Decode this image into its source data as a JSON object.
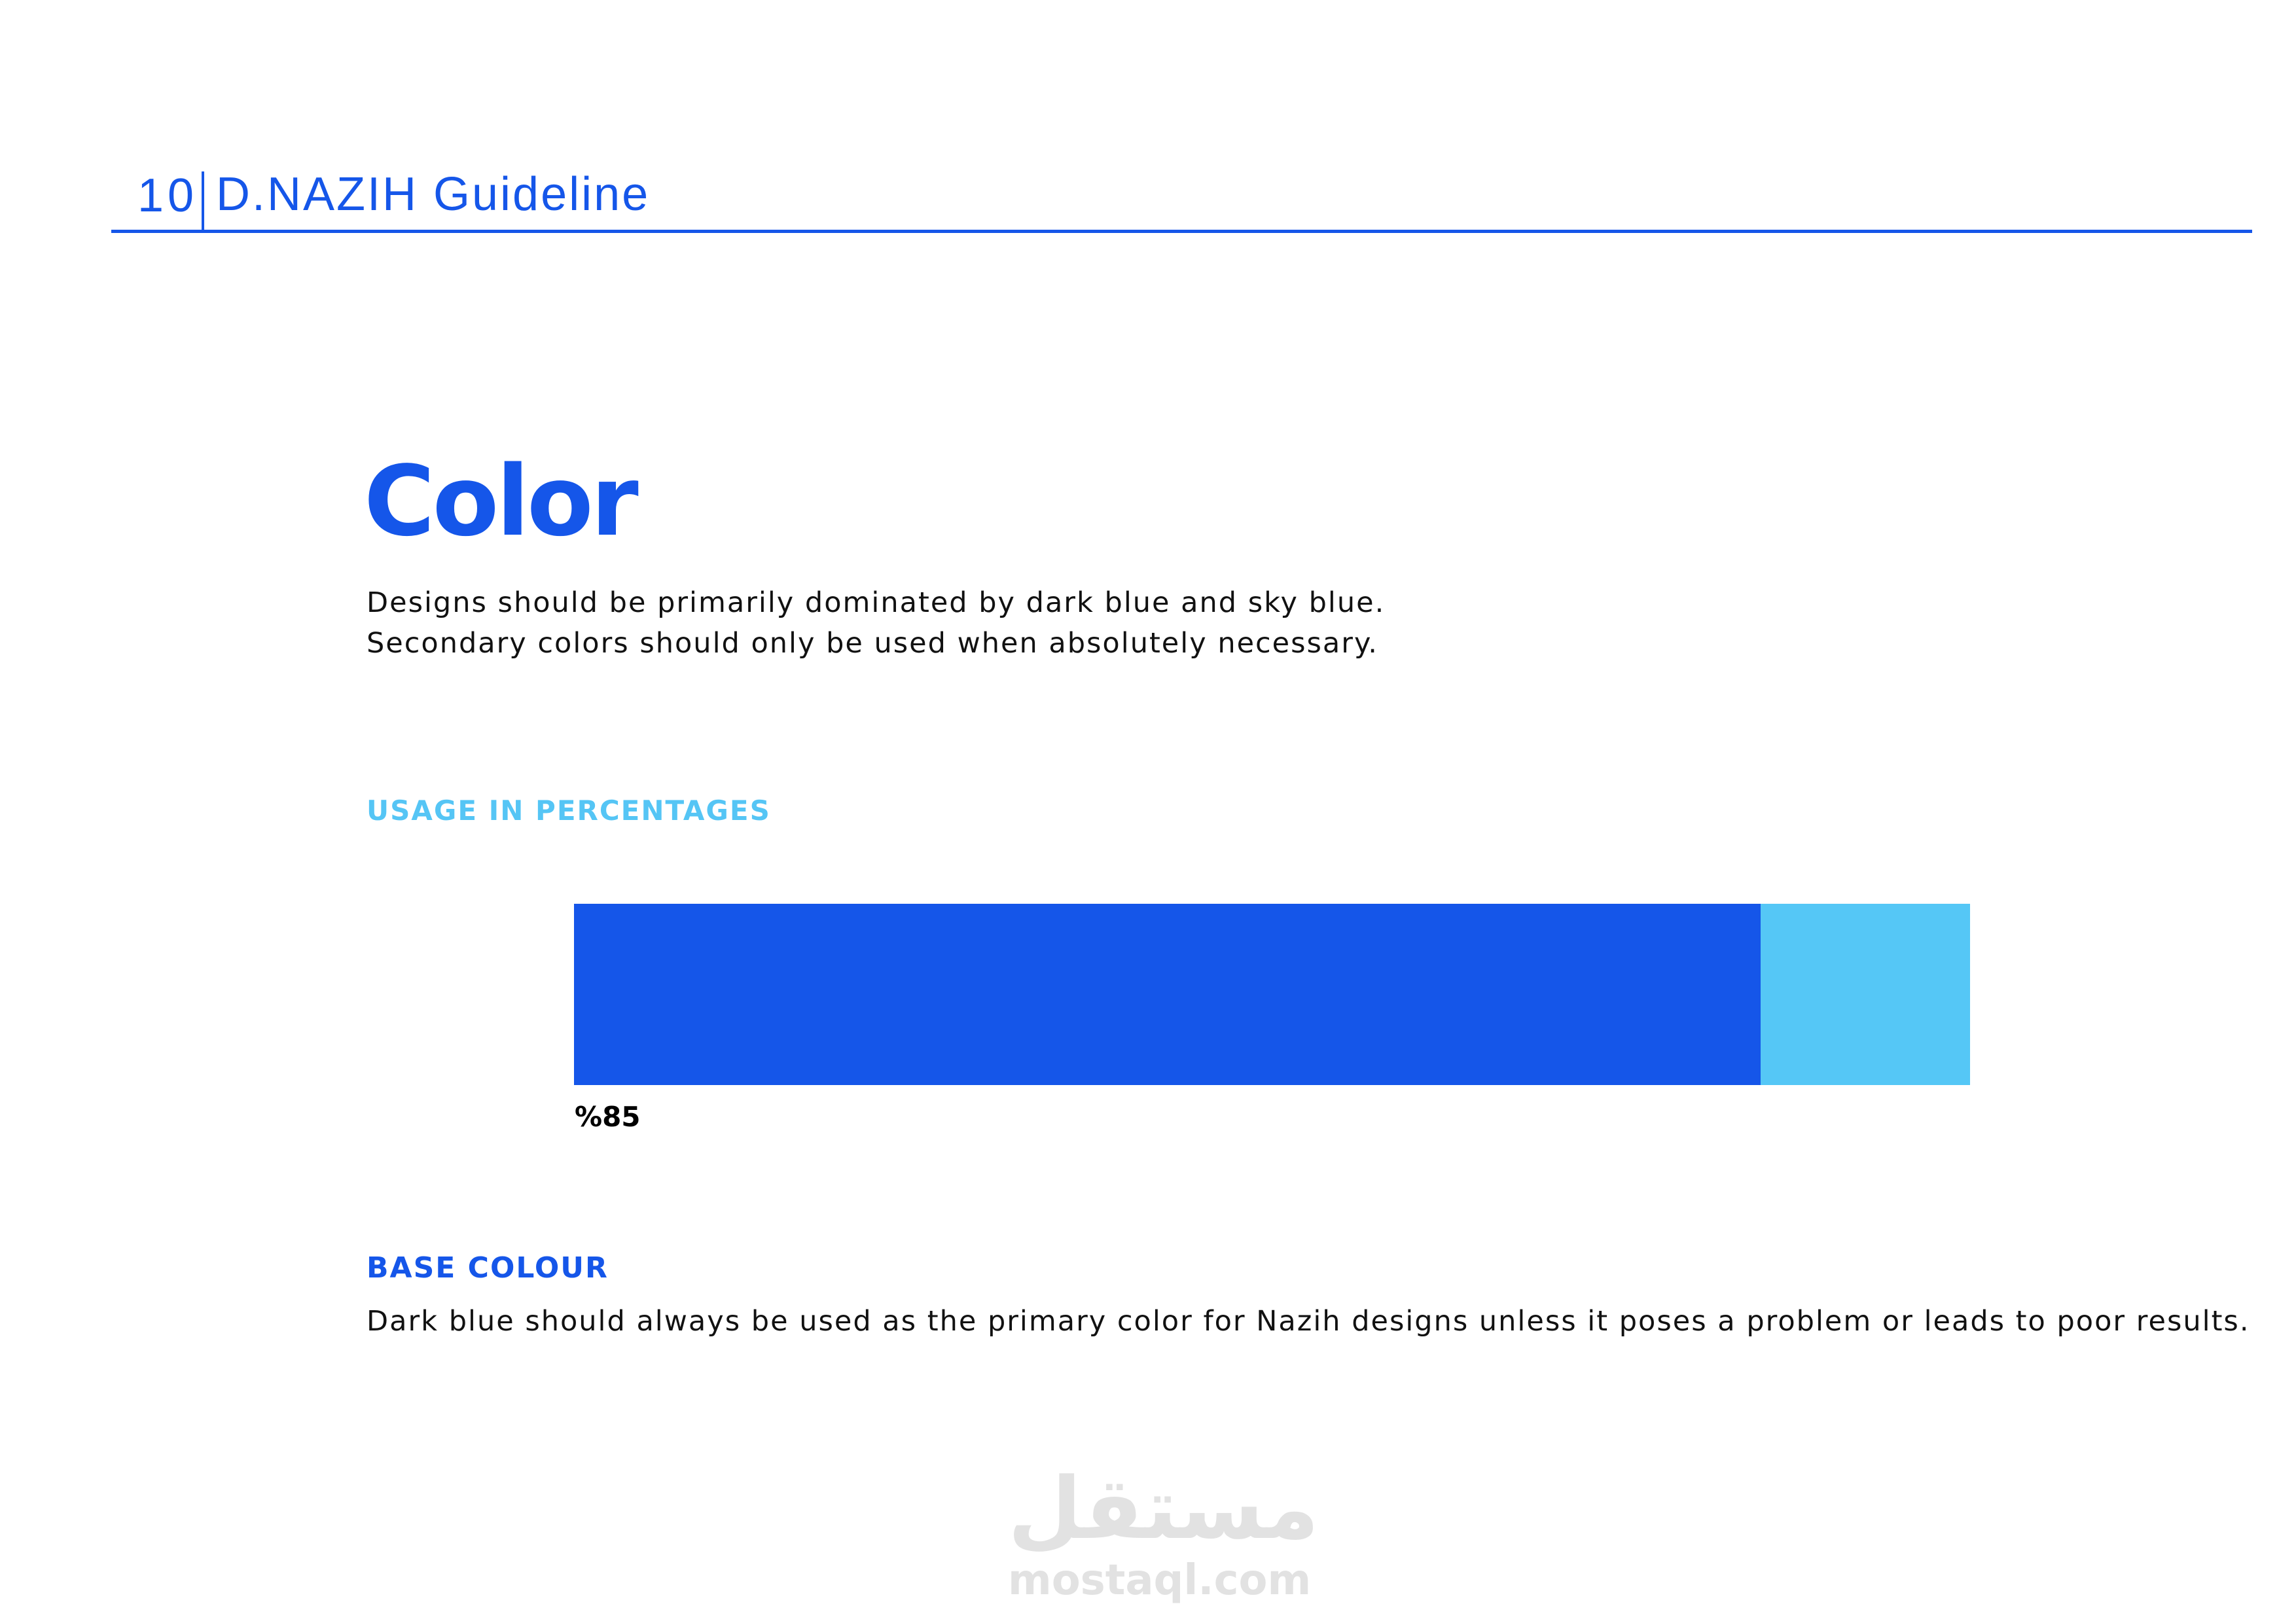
{
  "header": {
    "page_number": "10",
    "title": "D.NAZIH Guideline"
  },
  "main": {
    "heading": "Color",
    "intro": [
      "Designs should be primarily dominated by dark blue and sky blue.",
      "Secondary colors should only be used when absolutely necessary."
    ],
    "usage": {
      "label": "USAGE IN PERCENTAGES",
      "primary_percent": 85,
      "primary_label": "%85",
      "colors": {
        "dark_blue": "#1556e9",
        "sky_blue": "#55c7f6"
      }
    },
    "base_colour": {
      "label": "BASE COLOUR",
      "text": "Dark blue should always be used as the primary color for Nazih designs unless it poses a problem or leads to poor results."
    }
  },
  "watermark": {
    "arabic": "مستقل",
    "latin": "mostaql.com"
  }
}
